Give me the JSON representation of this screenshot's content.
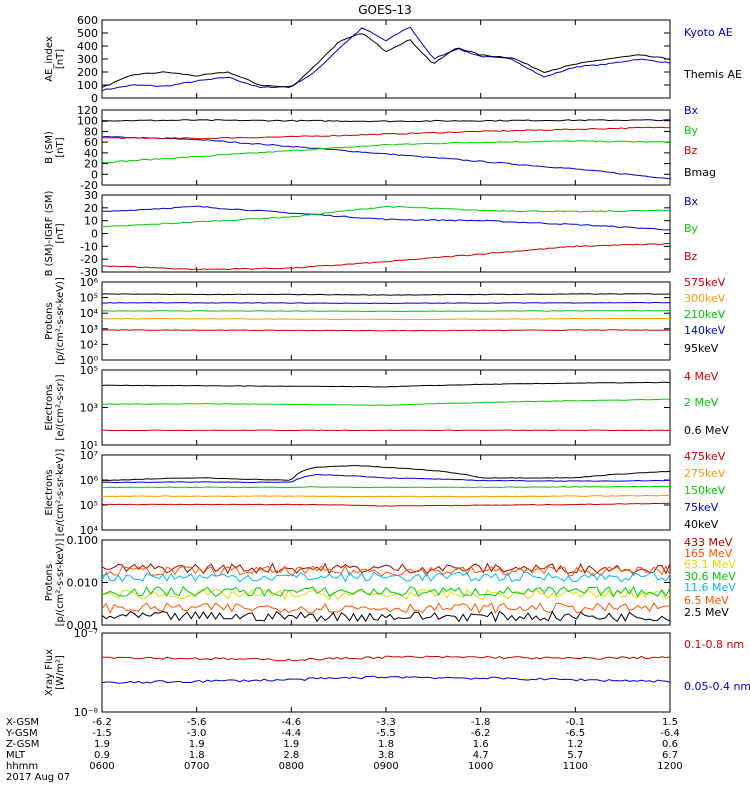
{
  "title": "GOES-13",
  "colors": {
    "black": "#000000",
    "blue": "#0000cc",
    "red": "#cc0000",
    "green": "#00cc00",
    "orange": "#ff9900",
    "cyan": "#00bbee",
    "yellow": "#dddd00",
    "darkred": "#aa0000",
    "orangered": "#ff5500",
    "purple": "#440099"
  },
  "time_axis": {
    "range": [
      "0600",
      "1200"
    ],
    "tick_rows": [
      {
        "label": "X-GSM",
        "values": [
          "-6.2",
          "-5.6",
          "-4.6",
          "-3.3",
          "-1.8",
          "-0.1",
          "1.5"
        ]
      },
      {
        "label": "Y-GSM",
        "values": [
          "-1.5",
          "-3.0",
          "-4.4",
          "-5.5",
          "-6.2",
          "-6.5",
          "-6.4"
        ]
      },
      {
        "label": "Z-GSM",
        "values": [
          "1.9",
          "1.9",
          "1.9",
          "1.8",
          "1.6",
          "1.2",
          "0.6"
        ]
      },
      {
        "label": "MLT",
        "values": [
          "0.9",
          "1.8",
          "2.8",
          "3.8",
          "4.7",
          "5.7",
          "6.7"
        ]
      },
      {
        "label": "hhmm",
        "values": [
          "0600",
          "0700",
          "0800",
          "0900",
          "1000",
          "1100",
          "1200"
        ]
      }
    ],
    "date": "2017 Aug 07"
  },
  "chart_data": [
    {
      "type": "line",
      "title": "GOES-13",
      "ylabel": "AE_index\n[nT]",
      "ylim": [
        0,
        600
      ],
      "yscale": "linear",
      "yticks": [
        "0",
        "100",
        "200",
        "300",
        "400",
        "500",
        "600"
      ],
      "x": [
        "0600",
        "0620",
        "0640",
        "0700",
        "0720",
        "0740",
        "0800",
        "0815",
        "0830",
        "0845",
        "0900",
        "0915",
        "0930",
        "0945",
        "1000",
        "1020",
        "1040",
        "1100",
        "1120",
        "1140",
        "1200"
      ],
      "series": [
        {
          "name": "Kyoto AE",
          "color": "#0000cc",
          "values": [
            60,
            100,
            90,
            130,
            160,
            80,
            90,
            200,
            380,
            540,
            440,
            550,
            300,
            380,
            320,
            300,
            160,
            240,
            260,
            300,
            270
          ]
        },
        {
          "name": "Themis AE",
          "color": "#000000",
          "values": [
            80,
            180,
            200,
            170,
            200,
            100,
            80,
            250,
            430,
            500,
            360,
            450,
            260,
            390,
            330,
            310,
            200,
            260,
            300,
            330,
            300
          ]
        }
      ]
    },
    {
      "type": "line",
      "ylabel": "B (SM)\n[nT]",
      "ylim": [
        -20,
        120
      ],
      "yscale": "linear",
      "yticks": [
        "-20",
        "0",
        "20",
        "40",
        "60",
        "80",
        "100",
        "120"
      ],
      "x": [
        "0600",
        "0700",
        "0800",
        "0900",
        "1000",
        "1100",
        "1200"
      ],
      "series": [
        {
          "name": "Bx",
          "color": "#0000cc",
          "values": [
            70,
            65,
            52,
            38,
            24,
            10,
            -8
          ]
        },
        {
          "name": "By",
          "color": "#00cc00",
          "values": [
            22,
            33,
            44,
            55,
            60,
            62,
            60
          ]
        },
        {
          "name": "Bz",
          "color": "#cc0000",
          "values": [
            68,
            67,
            70,
            75,
            80,
            84,
            88
          ]
        },
        {
          "name": "Bmag",
          "color": "#000000",
          "values": [
            100,
            101,
            100,
            99,
            100,
            101,
            101
          ]
        }
      ]
    },
    {
      "type": "line",
      "ylabel": "B (SM)-IGRF (SM)\n[nT]",
      "ylim": [
        -30,
        30
      ],
      "yscale": "linear",
      "yticks": [
        "-30",
        "-20",
        "-10",
        "0",
        "10",
        "20",
        "30"
      ],
      "x": [
        "0600",
        "0700",
        "0800",
        "0900",
        "1000",
        "1100",
        "1200"
      ],
      "series": [
        {
          "name": "Bx",
          "color": "#0000cc",
          "values": [
            17,
            21,
            16,
            11,
            10,
            7,
            3
          ]
        },
        {
          "name": "By",
          "color": "#00cc00",
          "values": [
            5,
            9,
            13,
            21,
            18,
            17,
            18
          ]
        },
        {
          "name": "Bz",
          "color": "#cc0000",
          "values": [
            -25,
            -28,
            -27,
            -22,
            -16,
            -10,
            -8
          ]
        }
      ]
    },
    {
      "type": "line",
      "ylabel": "Protons\n[p/(cm²-s-sr-keV)]",
      "ylim": [
        1,
        1000000
      ],
      "yscale": "log",
      "yticks": [
        "10⁰",
        "10²",
        "10³",
        "10⁴",
        "10⁵",
        "10⁶"
      ],
      "x": [
        "0600",
        "0700",
        "0800",
        "0900",
        "1000",
        "1100",
        "1200"
      ],
      "series": [
        {
          "name": "575keV",
          "color": "#cc0000",
          "values": [
            200,
            200,
            190,
            180,
            190,
            200,
            200
          ]
        },
        {
          "name": "300keV",
          "color": "#ff9900",
          "values": [
            1500,
            1500,
            1400,
            1300,
            1400,
            1500,
            1500
          ]
        },
        {
          "name": "210keV",
          "color": "#00cc00",
          "values": [
            6000,
            6000,
            5800,
            5500,
            5800,
            6000,
            6200
          ]
        },
        {
          "name": "140keV",
          "color": "#0000cc",
          "values": [
            25000,
            25000,
            24000,
            23000,
            24000,
            25000,
            26000
          ]
        },
        {
          "name": "95keV",
          "color": "#000000",
          "values": [
            120000,
            110000,
            110000,
            100000,
            110000,
            120000,
            120000
          ]
        }
      ]
    },
    {
      "type": "line",
      "ylabel": "Electrons\n[e/(cm²-s-sr)]",
      "ylim": [
        1,
        1000000
      ],
      "yscale": "log",
      "yticks": [
        "10¹",
        "10³",
        "10⁵"
      ],
      "x": [
        "0600",
        "0700",
        "0800",
        "0900",
        "1000",
        "1100",
        "1200"
      ],
      "series": [
        {
          "name": "4 MeV",
          "color": "#cc0000",
          "values": [
            15,
            15,
            15,
            15,
            15,
            15,
            15
          ]
        },
        {
          "name": "2 MeV",
          "color": "#00cc00",
          "values": [
            1800,
            2000,
            1800,
            1500,
            2500,
            3500,
            4500
          ]
        },
        {
          "name": "0.6 MeV",
          "color": "#000000",
          "values": [
            60000,
            55000,
            50000,
            45000,
            70000,
            90000,
            100000
          ]
        }
      ]
    },
    {
      "type": "line",
      "ylabel": "Electrons\n[e/(cm²-s-sr-keV)]",
      "ylim": [
        1000,
        100000000
      ],
      "yscale": "log",
      "yticks": [
        "10⁴",
        "10⁵",
        "10⁶",
        "10⁷"
      ],
      "x": [
        "0600",
        "0700",
        "0800",
        "0815",
        "0840",
        "0900",
        "1000",
        "1100",
        "1200"
      ],
      "series": [
        {
          "name": "475keV",
          "color": "#cc0000",
          "values": [
            50000,
            50000,
            50000,
            50000,
            45000,
            40000,
            45000,
            50000,
            60000
          ]
        },
        {
          "name": "275keV",
          "color": "#ff9900",
          "values": [
            180000,
            180000,
            180000,
            180000,
            170000,
            170000,
            170000,
            180000,
            200000
          ]
        },
        {
          "name": "150keV",
          "color": "#00cc00",
          "values": [
            700000,
            700000,
            700000,
            750000,
            700000,
            700000,
            700000,
            750000,
            800000
          ]
        },
        {
          "name": "75keV",
          "color": "#0000cc",
          "values": [
            1500000,
            1600000,
            1500000,
            5000000,
            4000000,
            3000000,
            2000000,
            1800000,
            2000000
          ]
        },
        {
          "name": "40keV",
          "color": "#000000",
          "values": [
            2000000,
            3000000,
            2000000,
            15000000,
            20000000,
            15000000,
            3000000,
            3000000,
            8000000
          ]
        }
      ]
    },
    {
      "type": "line",
      "ylabel": "Protons\n[p/(cm²-s-sr-keV)]",
      "ylim": [
        0.001,
        1
      ],
      "yscale": "log",
      "yticks": [
        "0.001",
        "0.010",
        "0.100"
      ],
      "x": [
        "0600",
        "1200"
      ],
      "series": [
        {
          "name": "433 MeV",
          "color": "#aa0000",
          "values": [
            0.1,
            0.1
          ]
        },
        {
          "name": "165 MeV",
          "color": "#ff5500",
          "values": [
            0.08,
            0.08
          ]
        },
        {
          "name": "63.1 MeV",
          "color": "#dddd00",
          "values": [
            0.012,
            0.012
          ]
        },
        {
          "name": "30.6 MeV",
          "color": "#00cc00",
          "values": [
            0.015,
            0.015
          ]
        },
        {
          "name": "11.6 MeV",
          "color": "#00bbee",
          "values": [
            0.05,
            0.05
          ]
        },
        {
          "name": "6.5 MeV",
          "color": "#ff5500",
          "values": [
            0.004,
            0.004
          ]
        },
        {
          "name": "2.5 MeV",
          "color": "#000000",
          "values": [
            0.002,
            0.002
          ]
        }
      ]
    },
    {
      "type": "line",
      "ylabel": "Xray Flux\n[W/m²]",
      "ylim": [
        5e-09,
        1e-07
      ],
      "yscale": "log",
      "yticks": [
        "10⁻⁸",
        "10⁻⁷"
      ],
      "x": [
        "0600",
        "0700",
        "0800",
        "0900",
        "1000",
        "1100",
        "1200"
      ],
      "series": [
        {
          "name": "0.1-0.8 nm",
          "color": "#cc0000",
          "values": [
            4e-08,
            3.8e-08,
            3.6e-08,
            4e-08,
            4e-08,
            3.8e-08,
            4e-08
          ]
        },
        {
          "name": "0.05-0.4 nm",
          "color": "#0000cc",
          "values": [
            1.5e-08,
            1.6e-08,
            1.7e-08,
            1.9e-08,
            1.8e-08,
            1.7e-08,
            1.6e-08
          ]
        }
      ]
    }
  ]
}
